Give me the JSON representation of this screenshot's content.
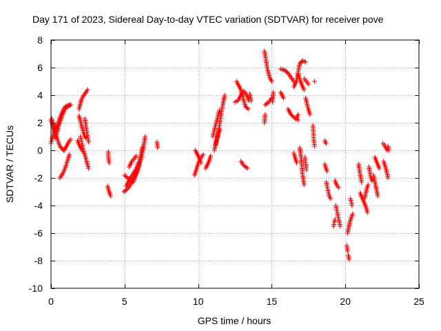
{
  "chart_data": {
    "type": "scatter",
    "title": "Day 171 of 2023, Sidereal Day-to-day VTEC variation (SDTVAR) for receiver pove",
    "xlabel": "GPS time / hours",
    "ylabel": "SDTVAR / TECUs",
    "xlim": [
      0,
      25
    ],
    "ylim": [
      -10,
      8
    ],
    "xticks": [
      "0",
      "5",
      "10",
      "15",
      "20",
      "25"
    ],
    "yticks": [
      "-10",
      "-8",
      "-6",
      "-4",
      "-2",
      "0",
      "2",
      "4",
      "6",
      "8"
    ],
    "grid": true,
    "marker": "plus",
    "colors": {
      "series": "#ff0000",
      "grid": "#a0a0a0",
      "axes": "#000000"
    },
    "series": [
      {
        "name": "SDTVAR",
        "segments": [
          {
            "x": [
              0.0,
              0.25
            ],
            "y": [
              2.2,
              1.4
            ]
          },
          {
            "x": [
              0.0,
              0.3
            ],
            "y": [
              0.5,
              1.8
            ]
          },
          {
            "x": [
              0.3,
              0.5,
              0.75,
              0.95,
              1.15,
              1.35
            ],
            "y": [
              0.9,
              1.7,
              2.5,
              3.0,
              3.2,
              3.3
            ]
          },
          {
            "x": [
              0.3,
              0.55,
              0.8,
              1.0,
              1.3
            ],
            "y": [
              1.4,
              2.2,
              2.9,
              3.2,
              3.3
            ]
          },
          {
            "x": [
              0.05,
              0.3,
              0.6,
              0.85
            ],
            "y": [
              2.3,
              1.2,
              0.3,
              0.0
            ]
          },
          {
            "x": [
              0.9,
              1.05,
              1.2,
              1.35
            ],
            "y": [
              0.0,
              0.3,
              0.6,
              0.8
            ]
          },
          {
            "x": [
              0.6,
              0.85,
              1.05,
              1.25
            ],
            "y": [
              -2.0,
              -1.6,
              -1.0,
              -0.3
            ]
          },
          {
            "x": [
              1.9,
              2.1,
              2.3,
              2.5
            ],
            "y": [
              3.0,
              3.8,
              4.1,
              4.4
            ]
          },
          {
            "x": [
              1.9,
              2.05,
              2.2,
              2.35
            ],
            "y": [
              2.5,
              1.9,
              1.3,
              0.9
            ]
          },
          {
            "x": [
              2.0,
              2.2,
              2.4,
              2.55
            ],
            "y": [
              1.0,
              0.0,
              -0.7,
              -1.3
            ]
          },
          {
            "x": [
              1.8,
              2.0,
              2.2
            ],
            "y": [
              0.7,
              0.2,
              -0.1
            ]
          },
          {
            "x": [
              2.3,
              2.45,
              2.55
            ],
            "y": [
              2.3,
              1.2,
              0.6
            ]
          },
          {
            "x": [
              3.9,
              3.9,
              3.95
            ],
            "y": [
              -0.1,
              -0.5,
              -0.9
            ]
          },
          {
            "x": [
              3.85,
              3.95,
              4.05
            ],
            "y": [
              -2.6,
              -3.0,
              -3.3
            ]
          },
          {
            "x": [
              4.95,
              5.2,
              5.45,
              5.7,
              5.95,
              6.2,
              6.4
            ],
            "y": [
              -3.0,
              -2.8,
              -2.4,
              -1.9,
              -1.2,
              -0.3,
              1.0
            ]
          },
          {
            "x": [
              5.0,
              5.3,
              5.6,
              5.9,
              6.2
            ],
            "y": [
              -1.8,
              -2.1,
              -2.3,
              -1.4,
              0.2
            ]
          },
          {
            "x": [
              5.1,
              5.4,
              5.7,
              6.0
            ],
            "y": [
              -2.6,
              -2.0,
              -1.5,
              -0.8
            ]
          },
          {
            "x": [
              5.3,
              5.5,
              5.8
            ],
            "y": [
              -1.2,
              -0.8,
              -0.4
            ]
          },
          {
            "x": [
              7.2,
              7.25
            ],
            "y": [
              0.6,
              0.2
            ]
          },
          {
            "x": [
              9.75,
              9.9,
              10.05,
              10.2,
              10.35
            ],
            "y": [
              -1.8,
              -1.3,
              -0.8,
              -0.5,
              -0.3
            ]
          },
          {
            "x": [
              9.8,
              10.0,
              10.2
            ],
            "y": [
              0.0,
              -0.4,
              -0.9
            ]
          },
          {
            "x": [
              10.5,
              10.7,
              10.85
            ],
            "y": [
              -1.3,
              -0.9,
              -0.4
            ]
          },
          {
            "x": [
              11.2,
              11.35,
              11.5,
              11.65,
              11.8
            ],
            "y": [
              0.4,
              1.2,
              2.2,
              3.2,
              4.0
            ]
          },
          {
            "x": [
              11.0,
              11.15,
              11.3,
              11.45
            ],
            "y": [
              1.0,
              1.7,
              2.3,
              2.9
            ]
          },
          {
            "x": [
              11.1,
              11.25,
              11.45
            ],
            "y": [
              0.0,
              0.8,
              1.5
            ]
          },
          {
            "x": [
              12.5,
              12.7,
              12.9,
              13.1,
              13.3,
              13.45
            ],
            "y": [
              3.5,
              3.6,
              4.0,
              4.3,
              4.0,
              3.6
            ]
          },
          {
            "x": [
              12.6,
              12.9,
              13.2,
              13.4
            ],
            "y": [
              5.0,
              4.4,
              3.2,
              3.0
            ]
          },
          {
            "x": [
              13.5,
              13.6
            ],
            "y": [
              4.1,
              3.6
            ]
          },
          {
            "x": [
              12.9,
              13.1,
              13.35
            ],
            "y": [
              -0.8,
              -1.1,
              -1.3
            ]
          },
          {
            "x": [
              14.5,
              14.6,
              14.7,
              14.85,
              15.0
            ],
            "y": [
              7.2,
              6.6,
              5.9,
              5.3,
              5.0
            ]
          },
          {
            "x": [
              14.55,
              14.8,
              15.0
            ],
            "y": [
              3.3,
              3.5,
              3.8
            ]
          },
          {
            "x": [
              14.5,
              14.55
            ],
            "y": [
              2.0,
              2.6
            ]
          },
          {
            "x": [
              15.05,
              15.1
            ],
            "y": [
              3.5,
              4.2
            ]
          },
          {
            "x": [
              15.6,
              15.9,
              16.1,
              16.3,
              16.5
            ],
            "y": [
              5.9,
              5.8,
              5.6,
              5.3,
              5.0
            ]
          },
          {
            "x": [
              15.6,
              15.8
            ],
            "y": [
              4.2,
              3.8
            ]
          },
          {
            "x": [
              16.1,
              16.3,
              16.6,
              16.8
            ],
            "y": [
              3.0,
              2.6,
              2.3,
              2.2
            ]
          },
          {
            "x": [
              16.5,
              16.7,
              16.9,
              17.1,
              17.3
            ],
            "y": [
              4.6,
              5.1,
              6.3,
              6.5,
              6.4
            ]
          },
          {
            "x": [
              16.7,
              16.8
            ],
            "y": [
              2.4,
              2.6
            ]
          },
          {
            "x": [
              16.8,
              16.95,
              17.1,
              17.2
            ],
            "y": [
              5.5,
              5.0,
              4.6,
              4.4
            ]
          },
          {
            "x": [
              17.3,
              17.45,
              17.6
            ],
            "y": [
              3.8,
              3.1,
              2.6
            ]
          },
          {
            "x": [
              17.2,
              17.35,
              17.5
            ],
            "y": [
              5.2,
              5.0,
              4.8
            ]
          },
          {
            "x": [
              16.5,
              16.6,
              16.7
            ],
            "y": [
              -0.2,
              -0.6,
              -0.9
            ]
          },
          {
            "x": [
              16.9,
              17.0,
              17.1,
              17.2
            ],
            "y": [
              0.2,
              -0.6,
              -1.8,
              -2.5
            ]
          },
          {
            "x": [
              17.25,
              17.35
            ],
            "y": [
              -0.5,
              -1.4
            ]
          },
          {
            "x": [
              17.8,
              17.85,
              17.9
            ],
            "y": [
              1.8,
              0.8,
              0.3
            ]
          },
          {
            "x": [
              17.9
            ],
            "y": [
              5.0
            ]
          },
          {
            "x": [
              18.6,
              18.7
            ],
            "y": [
              0.7,
              0.5
            ]
          },
          {
            "x": [
              18.6,
              18.65,
              18.75
            ],
            "y": [
              -1.0,
              -1.2,
              -1.5
            ]
          },
          {
            "x": [
              18.7,
              18.8,
              18.9,
              19.0
            ],
            "y": [
              -2.3,
              -2.8,
              -3.3,
              -3.5
            ]
          },
          {
            "x": [
              19.3,
              19.4,
              19.55
            ],
            "y": [
              -2.2,
              -2.5,
              -2.7
            ]
          },
          {
            "x": [
              19.35,
              19.45,
              19.55,
              19.65
            ],
            "y": [
              -4.0,
              -4.5,
              -5.0,
              -5.5
            ]
          },
          {
            "x": [
              19.2,
              19.3
            ],
            "y": [
              -5.5,
              -5.0
            ]
          },
          {
            "x": [
              20.1,
              20.15
            ],
            "y": [
              -6.9,
              -7.3
            ]
          },
          {
            "x": [
              20.2,
              20.25
            ],
            "y": [
              -7.6,
              -7.9
            ]
          },
          {
            "x": [
              20.15,
              20.3,
              20.5
            ],
            "y": [
              -6.0,
              -5.2,
              -4.6
            ]
          },
          {
            "x": [
              20.35,
              20.45
            ],
            "y": [
              -3.5,
              -4.0
            ]
          },
          {
            "x": [
              20.9,
              21.0,
              21.1
            ],
            "y": [
              -1.0,
              -1.7,
              -2.3
            ]
          },
          {
            "x": [
              21.0,
              21.2,
              21.4,
              21.5
            ],
            "y": [
              -3.1,
              -3.6,
              -4.1,
              -4.5
            ]
          },
          {
            "x": [
              21.3,
              21.45,
              21.55
            ],
            "y": [
              -3.5,
              -2.8,
              -2.5
            ]
          },
          {
            "x": [
              21.6,
              21.7,
              21.8
            ],
            "y": [
              -1.2,
              -1.8,
              -2.2
            ]
          },
          {
            "x": [
              21.9,
              22.05,
              22.2
            ],
            "y": [
              -1.8,
              -2.5,
              -3.3
            ]
          },
          {
            "x": [
              22.0,
              22.15,
              22.3
            ],
            "y": [
              -0.5,
              -0.9,
              -1.3
            ]
          },
          {
            "x": [
              22.55,
              22.7,
              22.85
            ],
            "y": [
              0.5,
              0.3,
              0.0
            ]
          },
          {
            "x": [
              22.6,
              22.75,
              22.9
            ],
            "y": [
              -0.8,
              -1.3,
              -2.0
            ]
          },
          {
            "x": [
              22.9,
              22.95
            ],
            "y": [
              0.3,
              0.0
            ]
          }
        ]
      }
    ]
  }
}
